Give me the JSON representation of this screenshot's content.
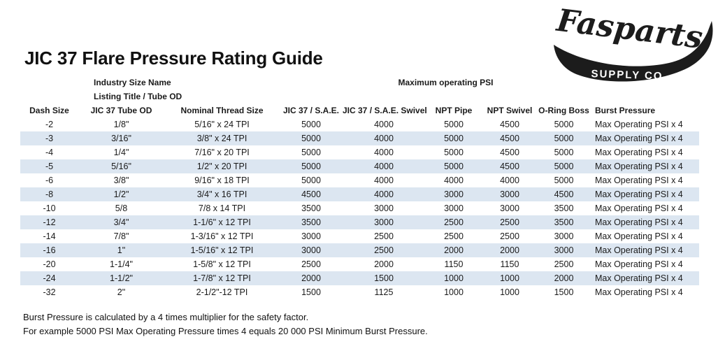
{
  "logo": {
    "brand": "Fasparts",
    "subbrand": "SUPPLY CO."
  },
  "title": "JIC 37 Flare Pressure Rating Guide",
  "table": {
    "industry_header_line1": "Industry Size Name",
    "industry_header_line2": "Listing Title / Tube OD",
    "psi_group_header": "Maximum operating PSI",
    "columns": [
      "Dash Size",
      "JIC 37 Tube OD",
      "Nominal Thread Size",
      "JIC 37 / S.A.E.",
      "JIC 37 / S.A.E. Swivel",
      "NPT Pipe",
      "NPT Swivel",
      "O-Ring Boss",
      "Burst Pressure"
    ],
    "rows": [
      [
        "-2",
        "1/8\"",
        "5/16\" x 24 TPI",
        "5000",
        "4000",
        "5000",
        "4500",
        "5000",
        "Max Operating PSI x 4"
      ],
      [
        "-3",
        "3/16\"",
        "3/8\" x 24 TPI",
        "5000",
        "4000",
        "5000",
        "4500",
        "5000",
        "Max Operating PSI x 4"
      ],
      [
        "-4",
        "1/4\"",
        "7/16\" x 20 TPI",
        "5000",
        "4000",
        "5000",
        "4500",
        "5000",
        "Max Operating PSI x 4"
      ],
      [
        "-5",
        "5/16\"",
        "1/2\" x 20 TPI",
        "5000",
        "4000",
        "5000",
        "4500",
        "5000",
        "Max Operating PSI x 4"
      ],
      [
        "-6",
        "3/8\"",
        "9/16\" x 18 TPI",
        "5000",
        "4000",
        "4000",
        "4000",
        "5000",
        "Max Operating PSI x 4"
      ],
      [
        "-8",
        "1/2\"",
        "3/4\" x 16 TPI",
        "4500",
        "4000",
        "3000",
        "3000",
        "4500",
        "Max Operating PSI x 4"
      ],
      [
        "-10",
        "5/8",
        "7/8 x 14 TPI",
        "3500",
        "3000",
        "3000",
        "3000",
        "3500",
        "Max Operating PSI x 4"
      ],
      [
        "-12",
        "3/4\"",
        "1-1/6\" x 12 TPI",
        "3500",
        "3000",
        "2500",
        "2500",
        "3500",
        "Max Operating PSI x 4"
      ],
      [
        "-14",
        "7/8\"",
        "1-3/16\" x 12 TPI",
        "3000",
        "2500",
        "2500",
        "2500",
        "3000",
        "Max Operating PSI x 4"
      ],
      [
        "-16",
        "1\"",
        "1-5/16\" x 12 TPI",
        "3000",
        "2500",
        "2000",
        "2000",
        "3000",
        "Max Operating PSI x 4"
      ],
      [
        "-20",
        "1-1/4\"",
        "1-5/8\" x 12 TPI",
        "2500",
        "2000",
        "1150",
        "1150",
        "2500",
        "Max Operating PSI x 4"
      ],
      [
        "-24",
        "1-1/2\"",
        "1-7/8\" x 12 TPI",
        "2000",
        "1500",
        "1000",
        "1000",
        "2000",
        "Max Operating PSI x 4"
      ],
      [
        "-32",
        "2\"",
        "2-1/2\"-12 TPI",
        "1500",
        "1125",
        "1000",
        "1000",
        "1500",
        "Max Operating PSI x 4"
      ]
    ]
  },
  "footnotes": [
    "Burst Pressure is calculated by a 4 times multiplier for the safety factor.",
    "For example 5000 PSI Max Operating Pressure times 4 equals 20 000 PSI Minimum Burst Pressure."
  ],
  "colors": {
    "stripe": "#dce6f1",
    "ink": "#000000"
  }
}
